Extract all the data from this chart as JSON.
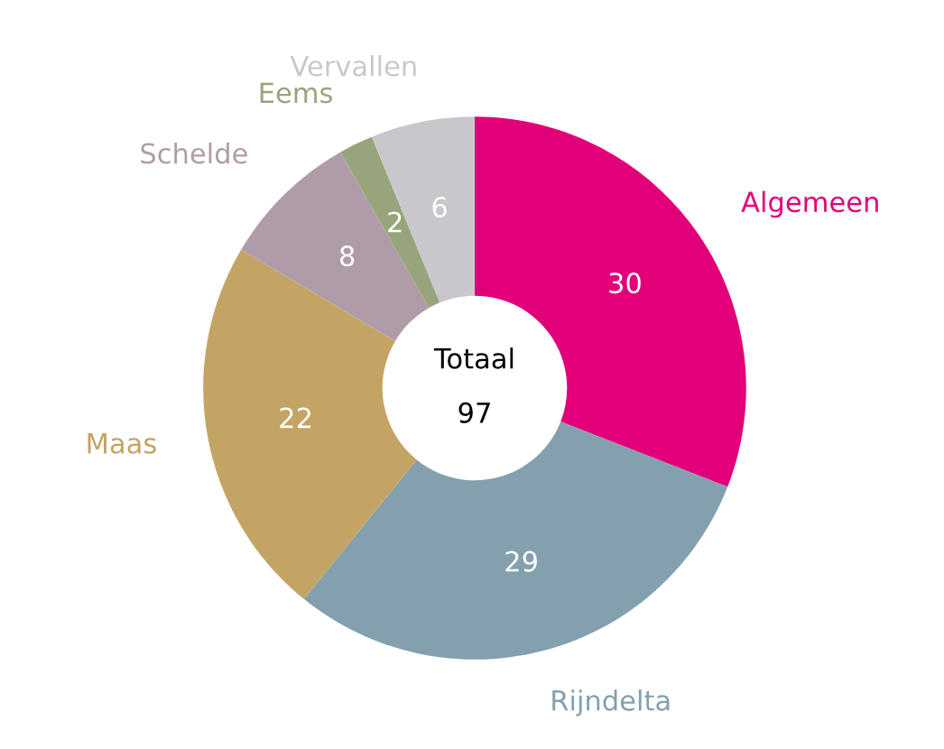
{
  "chart_data": {
    "type": "donut",
    "categories": [
      "Algemeen",
      "Rijndelta",
      "Maas",
      "Schelde",
      "Eems",
      "Vervallen"
    ],
    "values": [
      30,
      29,
      22,
      8,
      2,
      6
    ],
    "colors": [
      "#e2007a",
      "#84a0ae",
      "#c4a464",
      "#b09ca8",
      "#98a57c",
      "#c8c8cc"
    ],
    "data_labels": true,
    "annotations": [
      "Totaal",
      "97"
    ]
  }
}
